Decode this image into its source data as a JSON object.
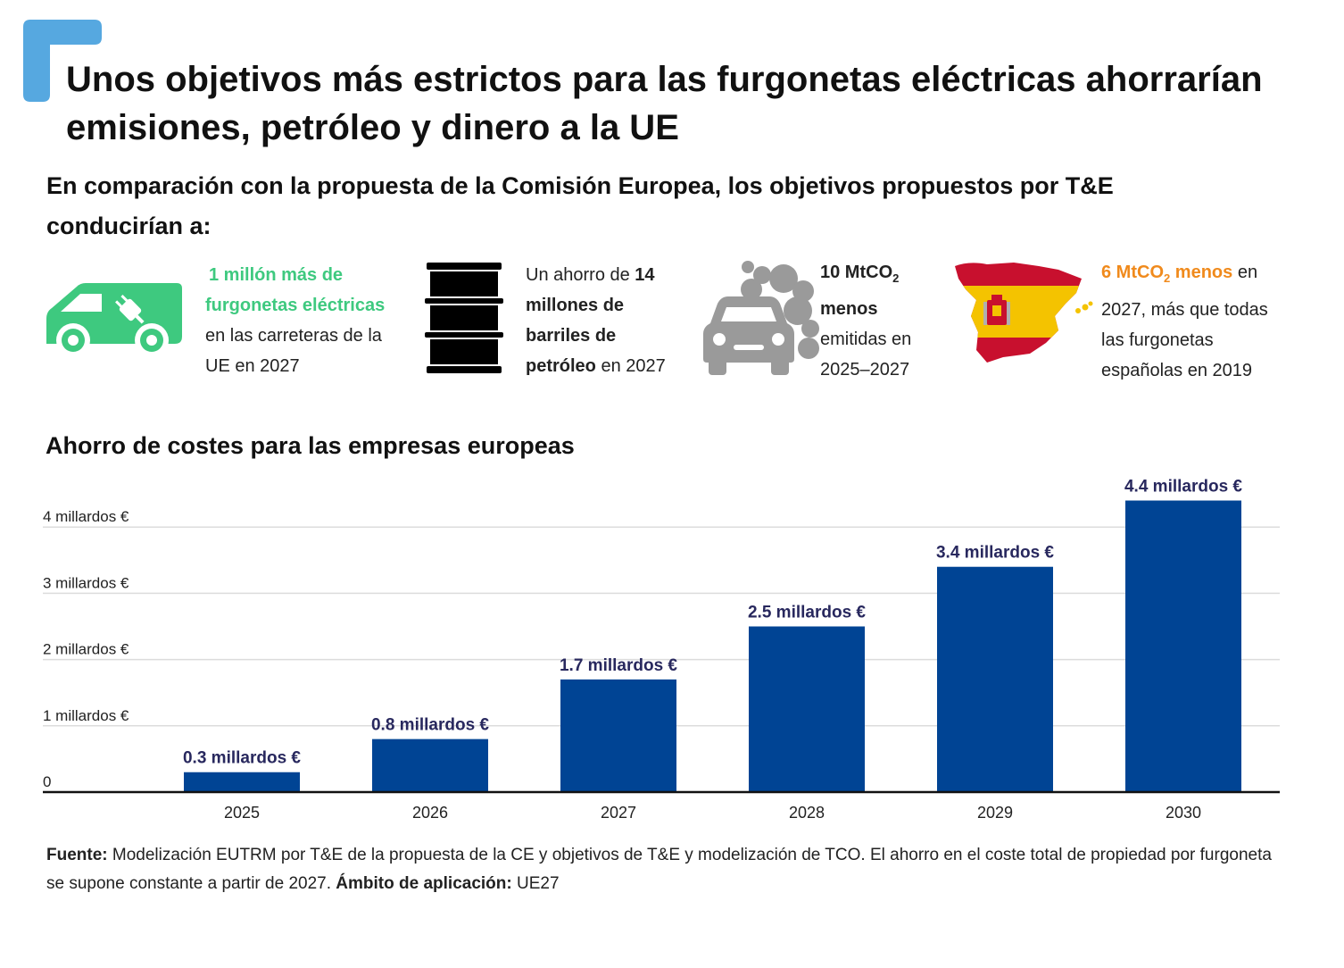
{
  "header": {
    "title_line1": "Unos objetivos más estrictos para las furgonetas eléctricas ahorrarían",
    "title_line2": "emisiones, petróleo y dinero a la UE",
    "subtitle_line1": "En comparación con la propuesta de la Comisión Europea, los objetivos propuestos por T&E",
    "subtitle_line2": "conducirían a:"
  },
  "colors": {
    "accent_blue": "#56a8e0",
    "bar": "#004494",
    "value_label": "#28285e",
    "green": "#3ec97f",
    "orange": "#f08a1c",
    "smoke_gray": "#9a9a9a"
  },
  "stats": [
    {
      "icon": "electric-van-icon",
      "line1": "1 millón más de",
      "line2": "furgonetas eléctricas",
      "line3": "en las carreteras de la",
      "line4": "UE en 2027"
    },
    {
      "icon": "oil-barrel-icon",
      "pre": "Un ahorro de ",
      "bold1": "14",
      "bold2": "millones de",
      "bold3": "barriles de",
      "bold4": "petróleo",
      "post": " en 2027"
    },
    {
      "icon": "polluting-car-icon",
      "bold_main": "10 MtCO",
      "bold_sub": "2",
      "bold2": "menos",
      "line3": "emitidas en",
      "line4": "2025–2027"
    },
    {
      "icon": "spain-map-icon",
      "hl_main": "6 MtCO",
      "hl_sub": "2",
      "hl_tail": " menos",
      "after": " en",
      "line2": "2027, más que todas",
      "line3": "las furgonetas",
      "line4": "españolas en 2019"
    }
  ],
  "chart_title": "Ahorro de costes para las empresas europeas",
  "chart_data": {
    "type": "bar",
    "title": "Ahorro de costes para las empresas europeas",
    "categories": [
      "2025",
      "2026",
      "2027",
      "2028",
      "2029",
      "2030"
    ],
    "values": [
      0.3,
      0.8,
      1.7,
      2.5,
      3.4,
      4.4
    ],
    "value_labels": [
      "0.3 millardos €",
      "0.8 millardos €",
      "1.7 millardos €",
      "2.5 millardos €",
      "3.4 millardos €",
      "4.4 millardos €"
    ],
    "yticks": [
      0,
      1,
      2,
      3,
      4
    ],
    "ytick_labels": [
      "0",
      "1 millardos €",
      "2 millardos €",
      "3 millardos €",
      "4 millardos €"
    ],
    "ylim": [
      0,
      4.2
    ],
    "grid": true,
    "xlabel": "",
    "ylabel": ""
  },
  "footer": {
    "source_label": "Fuente:",
    "source_text": " Modelización EUTRM por T&E de la propuesta de la CE y objetivos de T&E y modelización de TCO. El ahorro en el coste total de propiedad por furgoneta se supone constante a partir de 2027.",
    "scope_label": "Ámbito de aplicación:",
    "scope_text": " UE27"
  }
}
